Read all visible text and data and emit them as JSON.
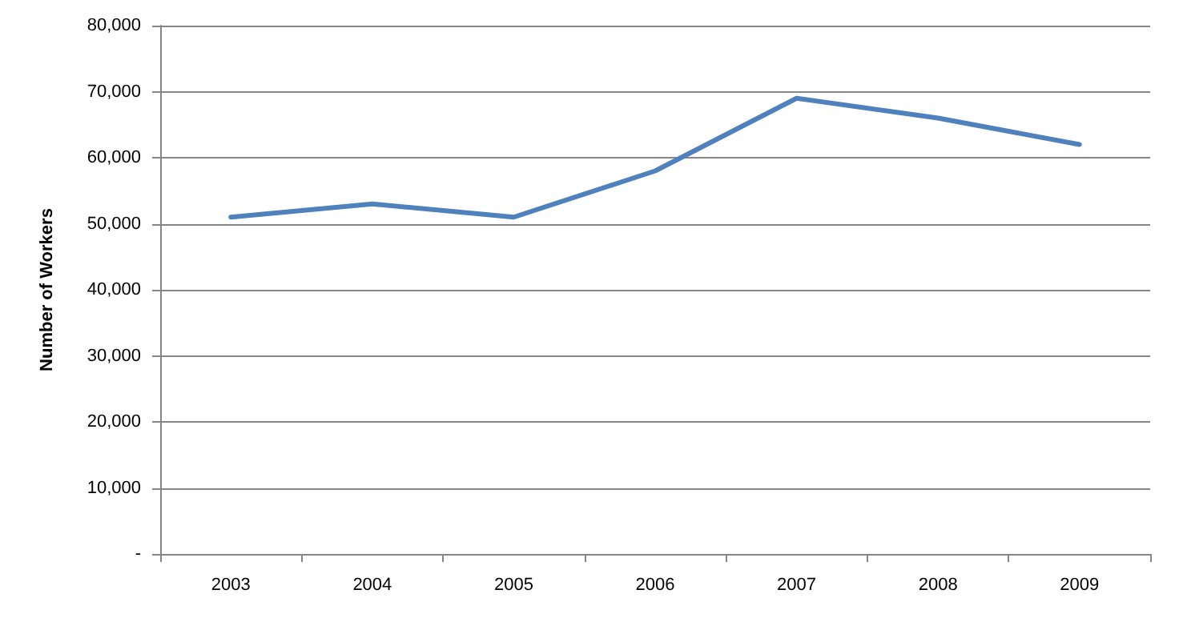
{
  "chart_data": {
    "type": "line",
    "ylabel": "Number of Workers",
    "categories": [
      "2003",
      "2004",
      "2005",
      "2006",
      "2007",
      "2008",
      "2009"
    ],
    "series": [
      {
        "color": "#4f81bd",
        "values": [
          51000,
          53000,
          51000,
          58000,
          69000,
          66000,
          62000
        ]
      }
    ],
    "ylim": [
      0,
      80000
    ],
    "yticks": [
      {
        "value": 0,
        "label": "-"
      },
      {
        "value": 10000,
        "label": "10,000"
      },
      {
        "value": 20000,
        "label": "20,000"
      },
      {
        "value": 30000,
        "label": "30,000"
      },
      {
        "value": 40000,
        "label": "40,000"
      },
      {
        "value": 50000,
        "label": "50,000"
      },
      {
        "value": 60000,
        "label": "60,000"
      },
      {
        "value": 70000,
        "label": "70,000"
      },
      {
        "value": 80000,
        "label": "80,000"
      }
    ],
    "grid": "y",
    "marker": "none",
    "line_style": "solid"
  }
}
